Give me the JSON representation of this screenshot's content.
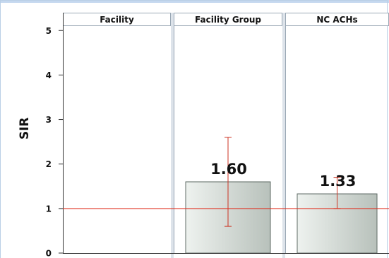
{
  "chart_data": {
    "type": "bar",
    "panels": [
      "Facility",
      "Facility Group",
      "NC ACHs"
    ],
    "ylabel": "SIR",
    "yticks": [
      0,
      1,
      2,
      3,
      4,
      5
    ],
    "ylim": [
      0,
      5.4
    ],
    "reference_line": 1,
    "series": [
      {
        "values": [
          null,
          1.6,
          1.33
        ],
        "labels": [
          "",
          "1.60",
          "1.33"
        ],
        "ci_low": [
          null,
          0.6,
          1.0
        ],
        "ci_high": [
          null,
          2.6,
          1.7
        ]
      }
    ],
    "colors": {
      "bar_fill_light": "#eef2ef",
      "bar_fill_dark": "#b8c1bb",
      "bar_stroke": "#5f6b66",
      "error_bar": "#cc3322",
      "reference_line": "#e03020",
      "panel_border": "#9aa8b5",
      "panel_gap": "#dde3ea"
    }
  }
}
